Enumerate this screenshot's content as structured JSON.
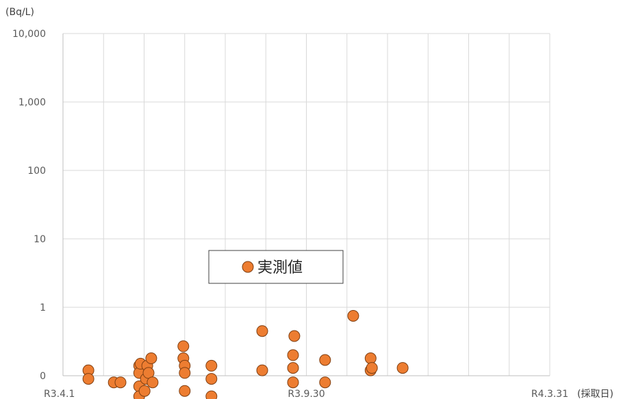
{
  "chart_data": {
    "type": "scatter",
    "ylabel": "(Bq/L)",
    "xlabel": "(採取日)",
    "y_scale": "log",
    "y_ticks": [
      "10,000",
      "1,000",
      "100",
      "10",
      "1",
      "0"
    ],
    "x_ticks": [
      "R3.4.1",
      "R3.9.30",
      "R4.3.31"
    ],
    "grid": true,
    "legend_position": "center",
    "series": [
      {
        "name": "実測値",
        "color": "#ED7D31",
        "edge_color": "#7F3F12",
        "points": [
          {
            "x": "R3.4.20",
            "y": 0.12
          },
          {
            "x": "R3.4.20",
            "y": 0.09
          },
          {
            "x": "R3.5.9",
            "y": 0.08
          },
          {
            "x": "R3.5.14",
            "y": 0.08
          },
          {
            "x": "R3.5.28",
            "y": 0.14
          },
          {
            "x": "R3.5.28",
            "y": 0.11
          },
          {
            "x": "R3.5.28",
            "y": 0.07
          },
          {
            "x": "R3.5.28",
            "y": 0.05
          },
          {
            "x": "R3.5.29",
            "y": 0.15
          },
          {
            "x": "R3.6.1",
            "y": 0.06
          },
          {
            "x": "R3.6.2",
            "y": 0.09
          },
          {
            "x": "R3.6.3",
            "y": 0.14
          },
          {
            "x": "R3.6.4",
            "y": 0.11
          },
          {
            "x": "R3.6.6",
            "y": 0.18
          },
          {
            "x": "R3.6.7",
            "y": 0.08
          },
          {
            "x": "R3.6.30",
            "y": 0.27
          },
          {
            "x": "R3.6.30",
            "y": 0.18
          },
          {
            "x": "R3.7.1",
            "y": 0.14
          },
          {
            "x": "R3.7.1",
            "y": 0.11
          },
          {
            "x": "R3.7.1",
            "y": 0.06
          },
          {
            "x": "R3.7.21",
            "y": 0.14
          },
          {
            "x": "R3.7.21",
            "y": 0.09
          },
          {
            "x": "R3.7.21",
            "y": 0.05
          },
          {
            "x": "R3.8.28",
            "y": 0.45
          },
          {
            "x": "R3.8.28",
            "y": 0.12
          },
          {
            "x": "R3.9.20",
            "y": 0.2
          },
          {
            "x": "R3.9.20",
            "y": 0.13
          },
          {
            "x": "R3.9.20",
            "y": 0.08
          },
          {
            "x": "R3.9.21",
            "y": 0.38
          },
          {
            "x": "R3.10.14",
            "y": 0.17
          },
          {
            "x": "R3.10.14",
            "y": 0.08
          },
          {
            "x": "R3.11.4",
            "y": 0.75
          },
          {
            "x": "R3.11.17",
            "y": 0.18
          },
          {
            "x": "R3.11.17",
            "y": 0.12
          },
          {
            "x": "R3.11.18",
            "y": 0.13
          },
          {
            "x": "R3.12.11",
            "y": 0.13
          }
        ]
      }
    ]
  }
}
